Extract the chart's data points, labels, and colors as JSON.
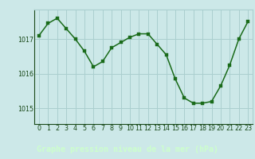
{
  "x": [
    0,
    1,
    2,
    3,
    4,
    5,
    6,
    7,
    8,
    9,
    10,
    11,
    12,
    13,
    14,
    15,
    16,
    17,
    18,
    19,
    20,
    21,
    22,
    23
  ],
  "y": [
    1017.1,
    1017.45,
    1017.6,
    1017.3,
    1017.0,
    1016.65,
    1016.2,
    1016.35,
    1016.75,
    1016.9,
    1017.05,
    1017.15,
    1017.15,
    1016.85,
    1016.55,
    1015.85,
    1015.3,
    1015.15,
    1015.15,
    1015.2,
    1015.65,
    1016.25,
    1017.0,
    1017.5
  ],
  "line_color": "#1a6b1a",
  "marker_color": "#1a6b1a",
  "bg_color": "#cce8e8",
  "grid_color": "#aacfcf",
  "bottom_bar_color": "#2a5a2a",
  "xlabel": "Graphe pression niveau de la mer (hPa)",
  "xlabel_color": "#ccffcc",
  "tick_color": "#1a4a1a",
  "yticks": [
    1015,
    1016,
    1017
  ],
  "xtick_labels": [
    "0",
    "1",
    "2",
    "3",
    "4",
    "5",
    "6",
    "7",
    "8",
    "9",
    "10",
    "11",
    "12",
    "13",
    "14",
    "15",
    "16",
    "17",
    "18",
    "19",
    "20",
    "21",
    "22",
    "23"
  ],
  "ylim": [
    1014.55,
    1017.85
  ],
  "xlim": [
    -0.5,
    23.5
  ],
  "tick_label_fontsize": 5.8,
  "xlabel_fontsize": 7.2,
  "line_width": 1.1,
  "marker_size": 2.8
}
